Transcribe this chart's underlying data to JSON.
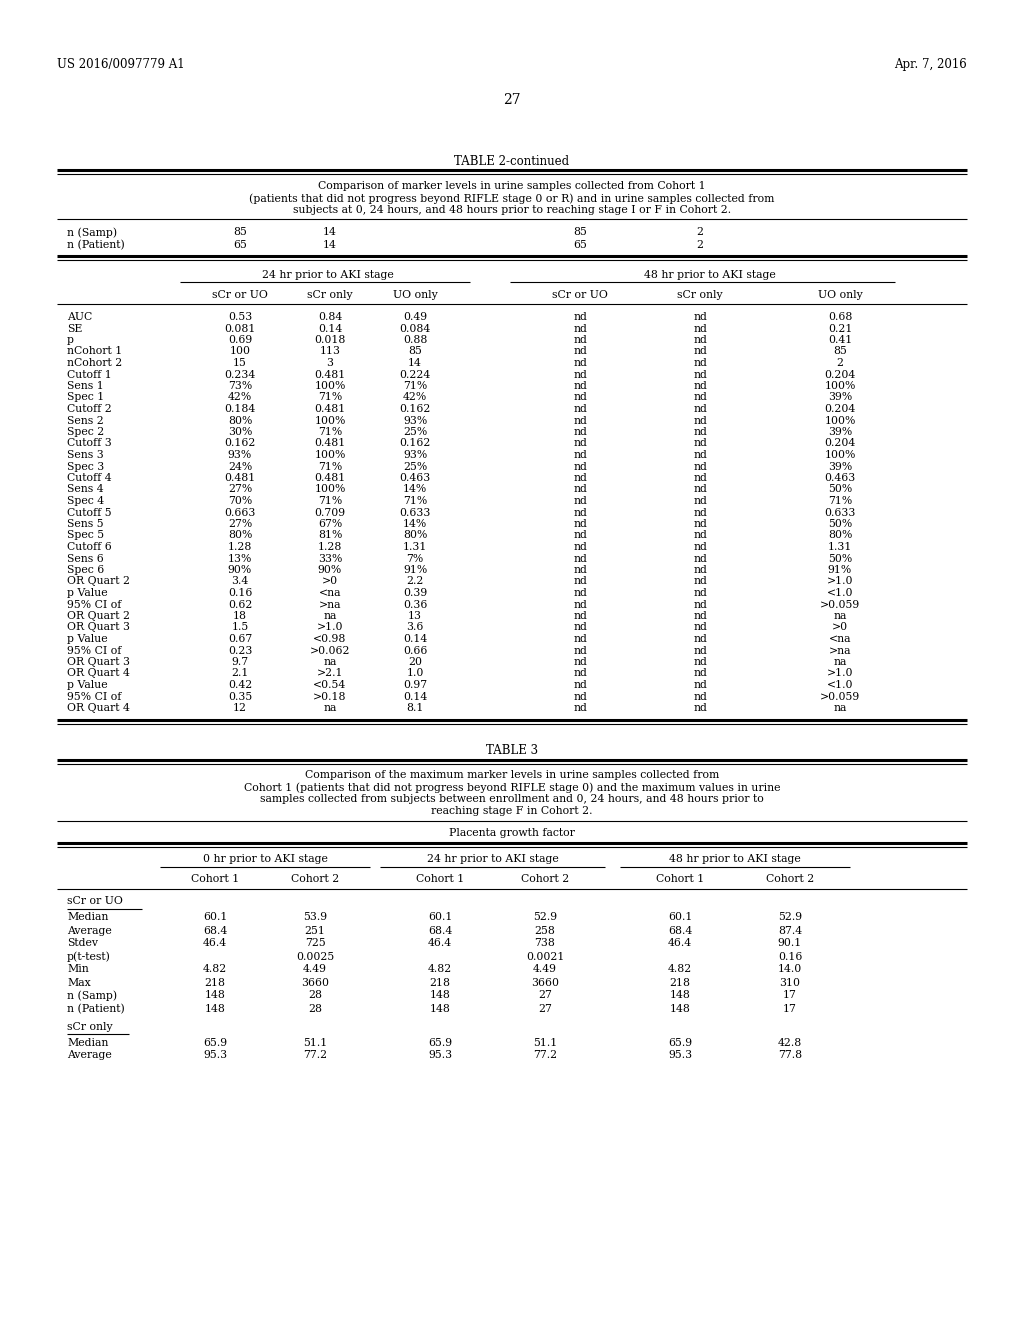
{
  "page_header_left": "US 2016/0097779 A1",
  "page_header_right": "Apr. 7, 2016",
  "page_number": "27",
  "table2_title": "TABLE 2-continued",
  "table2_caption_lines": [
    "Comparison of marker levels in urine samples collected from Cohort 1",
    "(patients that did not progress beyond RIFLE stage 0 or R) and in urine samples collected from",
    "subjects at 0, 24 hours, and 48 hours prior to reaching stage I or F in Cohort 2."
  ],
  "table2_nsamp_row": [
    "n (Samp)",
    "85",
    "14",
    "85",
    "2"
  ],
  "table2_npatient_row": [
    "n (Patient)",
    "65",
    "14",
    "65",
    "2"
  ],
  "table2_group_headers": [
    "24 hr prior to AKI stage",
    "48 hr prior to AKI stage"
  ],
  "table2_col_headers": [
    "",
    "sCr or UO",
    "sCr only",
    "UO only",
    "sCr or UO",
    "sCr only",
    "UO only"
  ],
  "table2_data": [
    [
      "AUC",
      "0.53",
      "0.84",
      "0.49",
      "nd",
      "nd",
      "0.68"
    ],
    [
      "SE",
      "0.081",
      "0.14",
      "0.084",
      "nd",
      "nd",
      "0.21"
    ],
    [
      "p",
      "0.69",
      "0.018",
      "0.88",
      "nd",
      "nd",
      "0.41"
    ],
    [
      "nCohort 1",
      "100",
      "113",
      "85",
      "nd",
      "nd",
      "85"
    ],
    [
      "nCohort 2",
      "15",
      "3",
      "14",
      "nd",
      "nd",
      "2"
    ],
    [
      "Cutoff 1",
      "0.234",
      "0.481",
      "0.224",
      "nd",
      "nd",
      "0.204"
    ],
    [
      "Sens 1",
      "73%",
      "100%",
      "71%",
      "nd",
      "nd",
      "100%"
    ],
    [
      "Spec 1",
      "42%",
      "71%",
      "42%",
      "nd",
      "nd",
      "39%"
    ],
    [
      "Cutoff 2",
      "0.184",
      "0.481",
      "0.162",
      "nd",
      "nd",
      "0.204"
    ],
    [
      "Sens 2",
      "80%",
      "100%",
      "93%",
      "nd",
      "nd",
      "100%"
    ],
    [
      "Spec 2",
      "30%",
      "71%",
      "25%",
      "nd",
      "nd",
      "39%"
    ],
    [
      "Cutoff 3",
      "0.162",
      "0.481",
      "0.162",
      "nd",
      "nd",
      "0.204"
    ],
    [
      "Sens 3",
      "93%",
      "100%",
      "93%",
      "nd",
      "nd",
      "100%"
    ],
    [
      "Spec 3",
      "24%",
      "71%",
      "25%",
      "nd",
      "nd",
      "39%"
    ],
    [
      "Cutoff 4",
      "0.481",
      "0.481",
      "0.463",
      "nd",
      "nd",
      "0.463"
    ],
    [
      "Sens 4",
      "27%",
      "100%",
      "14%",
      "nd",
      "nd",
      "50%"
    ],
    [
      "Spec 4",
      "70%",
      "71%",
      "71%",
      "nd",
      "nd",
      "71%"
    ],
    [
      "Cutoff 5",
      "0.663",
      "0.709",
      "0.633",
      "nd",
      "nd",
      "0.633"
    ],
    [
      "Sens 5",
      "27%",
      "67%",
      "14%",
      "nd",
      "nd",
      "50%"
    ],
    [
      "Spec 5",
      "80%",
      "81%",
      "80%",
      "nd",
      "nd",
      "80%"
    ],
    [
      "Cutoff 6",
      "1.28",
      "1.28",
      "1.31",
      "nd",
      "nd",
      "1.31"
    ],
    [
      "Sens 6",
      "13%",
      "33%",
      "7%",
      "nd",
      "nd",
      "50%"
    ],
    [
      "Spec 6",
      "90%",
      "90%",
      "91%",
      "nd",
      "nd",
      "91%"
    ],
    [
      "OR Quart 2",
      "3.4",
      ">0",
      "2.2",
      "nd",
      "nd",
      ">1.0"
    ],
    [
      "p Value",
      "0.16",
      "<na",
      "0.39",
      "nd",
      "nd",
      "<1.0"
    ],
    [
      "95% CI of",
      "0.62",
      ">na",
      "0.36",
      "nd",
      "nd",
      ">0.059"
    ],
    [
      "OR Quart 2",
      "18",
      "na",
      "13",
      "nd",
      "nd",
      "na"
    ],
    [
      "OR Quart 3",
      "1.5",
      ">1.0",
      "3.6",
      "nd",
      "nd",
      ">0"
    ],
    [
      "p Value",
      "0.67",
      "<0.98",
      "0.14",
      "nd",
      "nd",
      "<na"
    ],
    [
      "95% CI of",
      "0.23",
      ">0.062",
      "0.66",
      "nd",
      "nd",
      ">na"
    ],
    [
      "OR Quart 3",
      "9.7",
      "na",
      "20",
      "nd",
      "nd",
      "na"
    ],
    [
      "OR Quart 4",
      "2.1",
      ">2.1",
      "1.0",
      "nd",
      "nd",
      ">1.0"
    ],
    [
      "p Value",
      "0.42",
      "<0.54",
      "0.97",
      "nd",
      "nd",
      "<1.0"
    ],
    [
      "95% CI of",
      "0.35",
      ">0.18",
      "0.14",
      "nd",
      "nd",
      ">0.059"
    ],
    [
      "OR Quart 4",
      "12",
      "na",
      "8.1",
      "nd",
      "nd",
      "na"
    ]
  ],
  "table3_title": "TABLE 3",
  "table3_caption_lines": [
    "Comparison of the maximum marker levels in urine samples collected from",
    "Cohort 1 (patients that did not progress beyond RIFLE stage 0) and the maximum values in urine",
    "samples collected from subjects between enrollment and 0, 24 hours, and 48 hours prior to",
    "reaching stage F in Cohort 2."
  ],
  "table3_pgf_label": "Placenta growth factor",
  "table3_group_headers": [
    "0 hr prior to AKI stage",
    "24 hr prior to AKI stage",
    "48 hr prior to AKI stage"
  ],
  "table3_section1": "sCr or UO",
  "table3_data1": [
    [
      "Median",
      "60.1",
      "53.9",
      "60.1",
      "52.9",
      "60.1",
      "52.9"
    ],
    [
      "Average",
      "68.4",
      "251",
      "68.4",
      "258",
      "68.4",
      "87.4"
    ],
    [
      "Stdev",
      "46.4",
      "725",
      "46.4",
      "738",
      "46.4",
      "90.1"
    ],
    [
      "p(t-test)",
      "",
      "0.0025",
      "",
      "0.0021",
      "",
      "0.16"
    ],
    [
      "Min",
      "4.82",
      "4.49",
      "4.82",
      "4.49",
      "4.82",
      "14.0"
    ],
    [
      "Max",
      "218",
      "3660",
      "218",
      "3660",
      "218",
      "310"
    ],
    [
      "n (Samp)",
      "148",
      "28",
      "148",
      "27",
      "148",
      "17"
    ],
    [
      "n (Patient)",
      "148",
      "28",
      "148",
      "27",
      "148",
      "17"
    ]
  ],
  "table3_section2": "sCr only",
  "table3_data2": [
    [
      "Median",
      "65.9",
      "51.1",
      "65.9",
      "51.1",
      "65.9",
      "42.8"
    ],
    [
      "Average",
      "95.3",
      "77.2",
      "95.3",
      "77.2",
      "95.3",
      "77.8"
    ]
  ]
}
